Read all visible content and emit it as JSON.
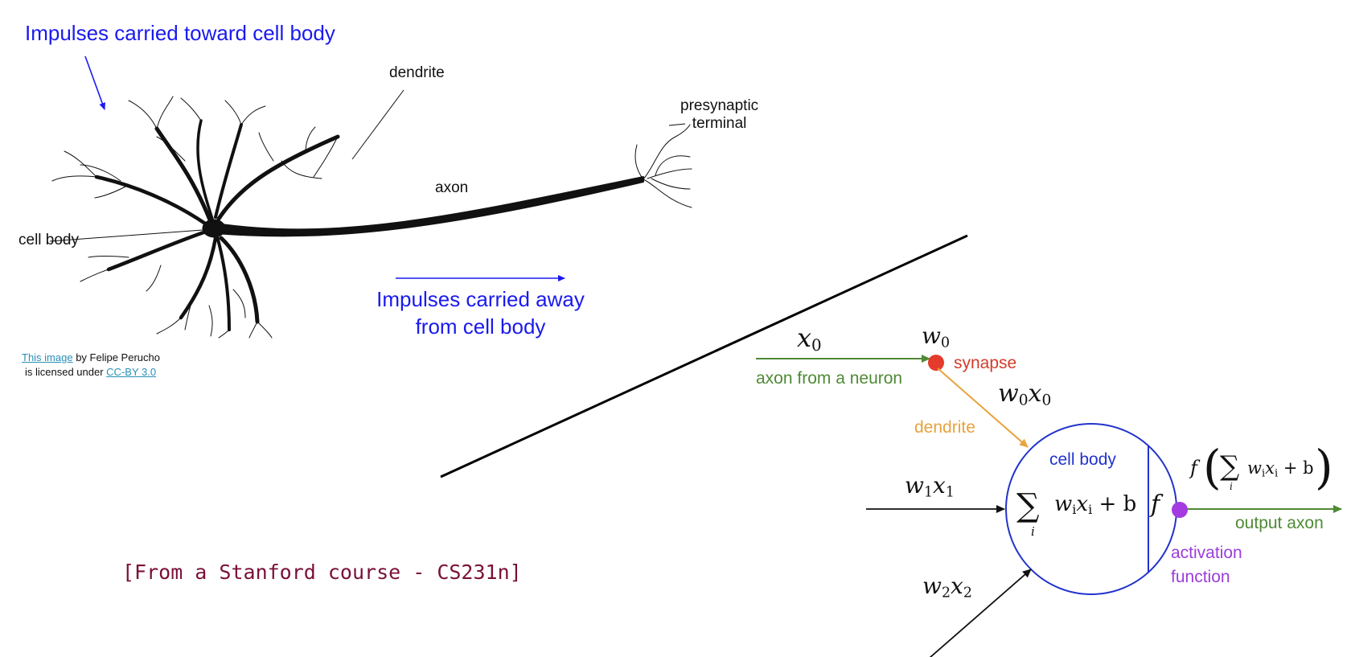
{
  "bio": {
    "impulses_toward": "Impulses carried toward cell body",
    "dendrite": "dendrite",
    "presynaptic_line1": "presynaptic",
    "presynaptic_line2": "terminal",
    "axon": "axon",
    "cell_body": "cell body",
    "impulses_away_line1": "Impulses carried away",
    "impulses_away_line2": "from cell body",
    "credit_link1": "This image",
    "credit_by": " by Felipe Perucho",
    "credit_licensed": "is licensed under ",
    "credit_link2": "CC-BY 3.0"
  },
  "source": "[From a Stanford course - CS231n]",
  "model": {
    "x0_base": "x",
    "x0_sub": "0",
    "w0_base": "w",
    "w0_sub": "0",
    "synapse": "synapse",
    "axon_from_neuron": "axon from a neuron",
    "w0x0_w": "w",
    "w0x0_wsub": "0",
    "w0x0_x": "x",
    "w0x0_xsub": "0",
    "dendrite": "dendrite",
    "cell_body": "cell body",
    "w1x1_w": "w",
    "w1x1_wsub": "1",
    "w1x1_x": "x",
    "w1x1_xsub": "1",
    "w2x2_w": "w",
    "w2x2_wsub": "2",
    "w2x2_x": "x",
    "w2x2_xsub": "2",
    "sum_symbol": "∑",
    "sum_index": "i",
    "sum_w": "w",
    "sum_x": "x",
    "sum_sub": "i",
    "sum_plus_b": " + b",
    "f": "f",
    "output_axon": "output axon",
    "activation_line1": "activation",
    "activation_line2": "function",
    "out_f": "f",
    "out_lparen": "(",
    "out_rparen": ")"
  },
  "colors": {
    "blue": "#1a1aee",
    "green": "#4f8a35",
    "red": "#d23b2a",
    "orange": "#e8a33c",
    "navy": "#2233cc",
    "purple": "#9b3ddb",
    "maroon": "#7a1038"
  }
}
